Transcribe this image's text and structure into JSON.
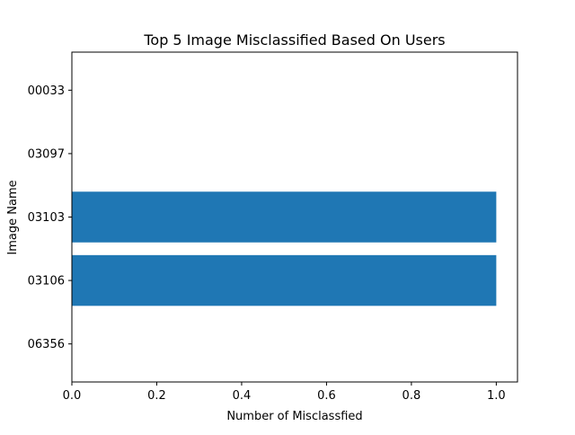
{
  "chart_data": {
    "type": "bar",
    "orientation": "horizontal",
    "title": "Top 5 Image Misclassified Based On Users",
    "xlabel": "Number of Misclassfied",
    "ylabel": "Image Name",
    "categories": [
      "00033",
      "03097",
      "03103",
      "03106",
      "06356"
    ],
    "values": [
      0,
      0,
      1,
      1,
      0
    ],
    "xlim": [
      0,
      1.05
    ],
    "xticks": [
      0.0,
      0.2,
      0.4,
      0.6,
      0.8,
      1.0
    ],
    "xtick_labels": [
      "0.0",
      "0.2",
      "0.4",
      "0.6",
      "0.8",
      "1.0"
    ],
    "grid": false,
    "bar_color": "#1f77b4"
  }
}
